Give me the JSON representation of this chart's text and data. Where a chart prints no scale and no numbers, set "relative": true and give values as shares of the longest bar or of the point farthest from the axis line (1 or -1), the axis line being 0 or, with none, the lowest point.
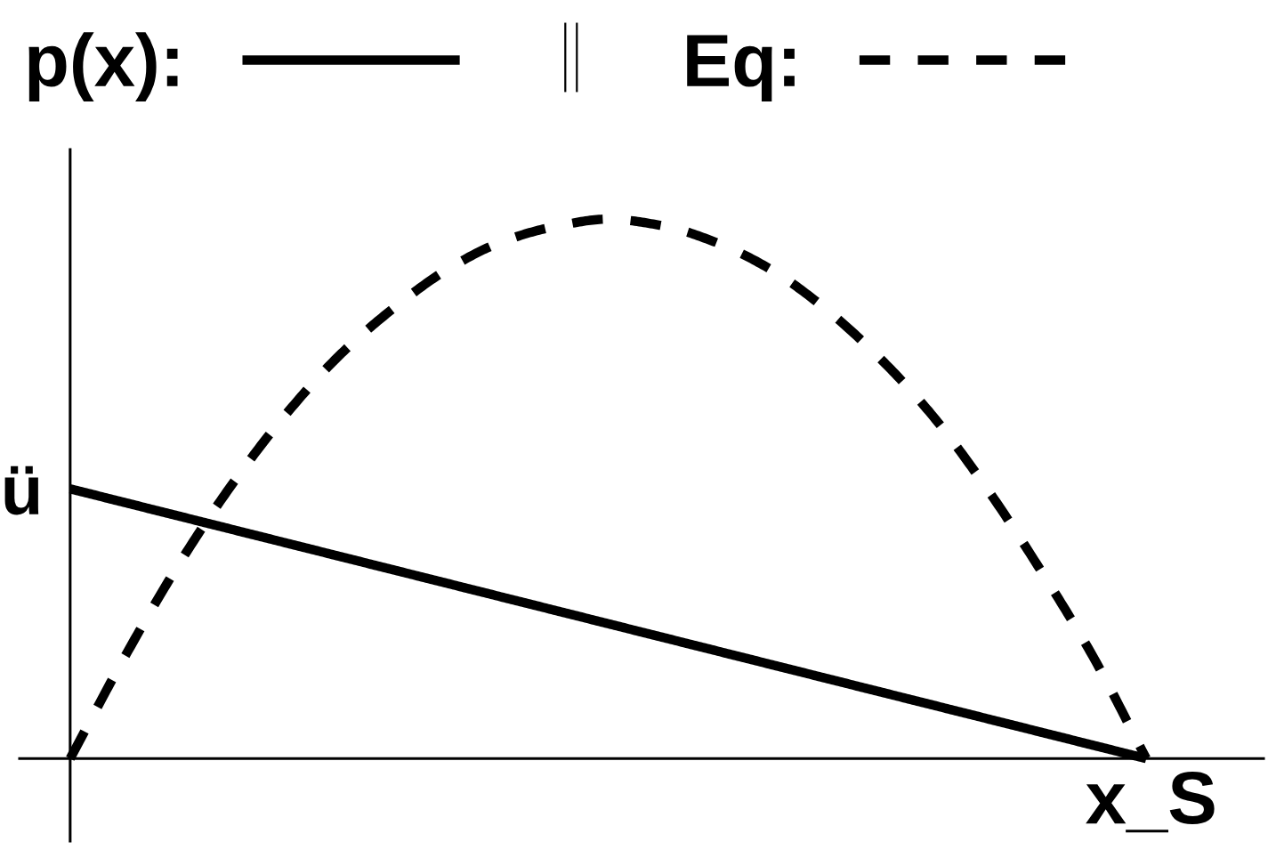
{
  "chart_data": {
    "type": "line",
    "relative": true,
    "legend": "top",
    "categories": [
      null,
      null,
      null,
      null,
      null,
      null,
      null,
      null,
      null,
      null,
      null,
      null,
      null,
      null,
      null,
      null,
      null,
      null,
      null,
      null,
      null
    ],
    "series": [
      {
        "name": "p(x):",
        "color": "#000000",
        "line_style": "solid",
        "values": [
          0.5,
          0.475,
          0.45,
          0.425,
          0.4,
          0.375,
          0.35,
          0.325,
          0.3,
          0.275,
          0.25,
          0.225,
          0.2,
          0.175,
          0.15,
          0.125,
          0.1,
          0.075,
          0.05,
          0.025,
          0
        ]
      },
      {
        "name": "Eq:",
        "color": "#000000",
        "line_style": "dashed",
        "values": [
          0,
          0.186,
          0.357,
          0.507,
          0.637,
          0.747,
          0.834,
          0.906,
          0.957,
          0.986,
          1,
          0.988,
          0.957,
          0.908,
          0.837,
          0.747,
          0.639,
          0.506,
          0.355,
          0.191,
          0
        ]
      }
    ],
    "annotations": [
      "ü",
      "x_S"
    ]
  }
}
